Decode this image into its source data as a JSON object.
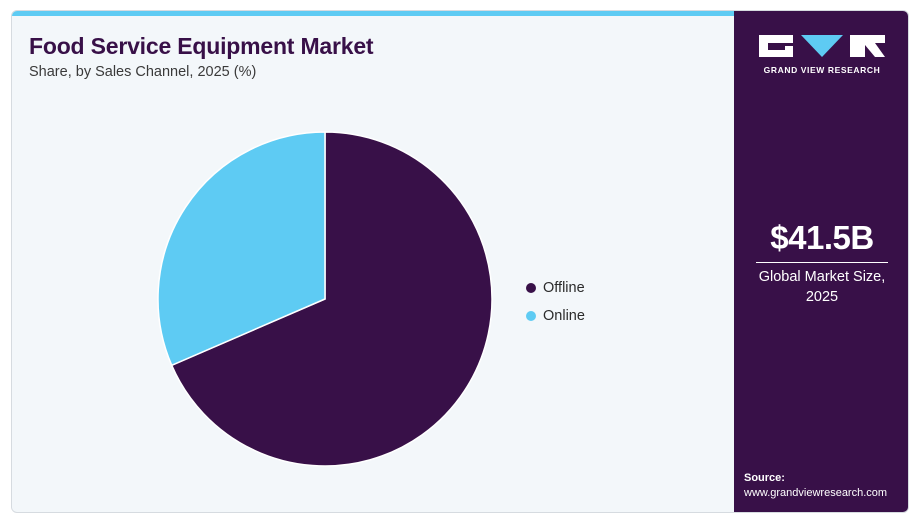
{
  "header": {
    "title": "Food Service Equipment Market",
    "subtitle": "Share, by Sales Channel, 2025 (%)"
  },
  "chart_data": {
    "type": "pie",
    "title": "Food Service Equipment Market",
    "subtitle": "Share, by Sales Channel, 2025 (%)",
    "categories": [
      "Offline",
      "Online"
    ],
    "values": [
      68.5,
      31.5
    ],
    "colors": [
      "#381048",
      "#5ecbf3"
    ],
    "start_angle": "12 o'clock",
    "direction": "clockwise",
    "legend_position": "right"
  },
  "side_panel": {
    "brand": "GRAND VIEW RESEARCH",
    "market_size": "$41.5B",
    "market_label_line1": "Global Market Size,",
    "market_label_line2": "2025",
    "source_label": "Source:",
    "source_url": "www.grandviewresearch.com",
    "accent_color": "#5ecbf3",
    "panel_color": "#381048"
  }
}
